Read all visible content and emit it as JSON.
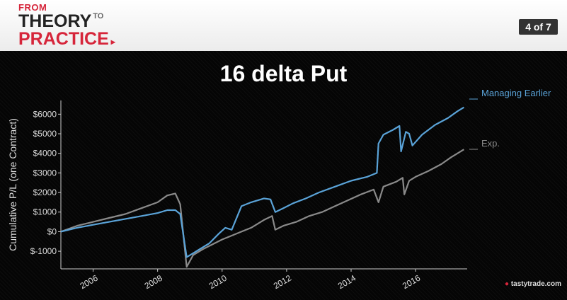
{
  "header": {
    "logo_from": "FROM",
    "logo_theory": "THEORY",
    "logo_to": "TO",
    "logo_practice": "PRACTICE",
    "page_indicator": "4 of 7"
  },
  "footer": {
    "brand": "tastytrade.com"
  },
  "colors": {
    "brand_red": "#d6253a",
    "managing_earlier": "#5aa3d8",
    "expiration": "#8a8a8a"
  },
  "chart_data": {
    "type": "line",
    "title": "16 delta Put",
    "xlabel": "",
    "ylabel": "Cumulative P/L (one Contract)",
    "xlim": [
      2005,
      2017.6
    ],
    "ylim": [
      -1900,
      6700
    ],
    "xticks": [
      2006,
      2008,
      2010,
      2012,
      2014,
      2016
    ],
    "yticks": [
      -1000,
      0,
      1000,
      2000,
      3000,
      4000,
      5000,
      6000
    ],
    "ytick_labels": [
      "$-1000",
      "$0",
      "$1000",
      "$2000",
      "$3000",
      "$4000",
      "$5000",
      "$6000"
    ],
    "grid": false,
    "legend_position": "right",
    "series": [
      {
        "name": "Managing Earlier",
        "color": "#5aa3d8",
        "x": [
          2005.0,
          2005.5,
          2006.0,
          2006.5,
          2007.0,
          2007.5,
          2008.0,
          2008.3,
          2008.55,
          2008.7,
          2008.9,
          2009.1,
          2009.3,
          2009.6,
          2009.9,
          2010.1,
          2010.3,
          2010.6,
          2010.9,
          2011.3,
          2011.5,
          2011.65,
          2011.9,
          2012.2,
          2012.6,
          2013.0,
          2013.5,
          2014.0,
          2014.5,
          2014.8,
          2014.85,
          2015.0,
          2015.3,
          2015.5,
          2015.55,
          2015.7,
          2015.8,
          2015.9,
          2016.2,
          2016.6,
          2017.0,
          2017.3,
          2017.5
        ],
        "y": [
          0,
          200,
          350,
          500,
          650,
          800,
          950,
          1100,
          1100,
          900,
          -1300,
          -1100,
          -900,
          -600,
          -100,
          200,
          100,
          1300,
          1500,
          1700,
          1650,
          1000,
          1200,
          1450,
          1700,
          2000,
          2300,
          2600,
          2800,
          3000,
          4500,
          4950,
          5200,
          5400,
          4100,
          5100,
          5000,
          4400,
          4950,
          5450,
          5800,
          6150,
          6350
        ]
      },
      {
        "name": "Exp.",
        "color": "#8a8a8a",
        "x": [
          2005.0,
          2005.5,
          2006.0,
          2006.5,
          2007.0,
          2007.5,
          2008.0,
          2008.3,
          2008.55,
          2008.7,
          2008.9,
          2009.1,
          2009.4,
          2009.7,
          2010.0,
          2010.3,
          2010.6,
          2010.9,
          2011.3,
          2011.55,
          2011.65,
          2011.9,
          2012.3,
          2012.7,
          2013.1,
          2013.5,
          2013.9,
          2014.3,
          2014.7,
          2014.85,
          2015.0,
          2015.4,
          2015.6,
          2015.65,
          2015.8,
          2016.0,
          2016.4,
          2016.8,
          2017.1,
          2017.5
        ],
        "y": [
          0,
          300,
          500,
          700,
          900,
          1200,
          1500,
          1850,
          1950,
          1400,
          -1800,
          -1200,
          -900,
          -650,
          -400,
          -200,
          0,
          200,
          600,
          800,
          100,
          300,
          500,
          800,
          1000,
          1300,
          1600,
          1900,
          2150,
          1500,
          2300,
          2550,
          2750,
          1900,
          2600,
          2800,
          3100,
          3450,
          3800,
          4200
        ]
      }
    ]
  }
}
